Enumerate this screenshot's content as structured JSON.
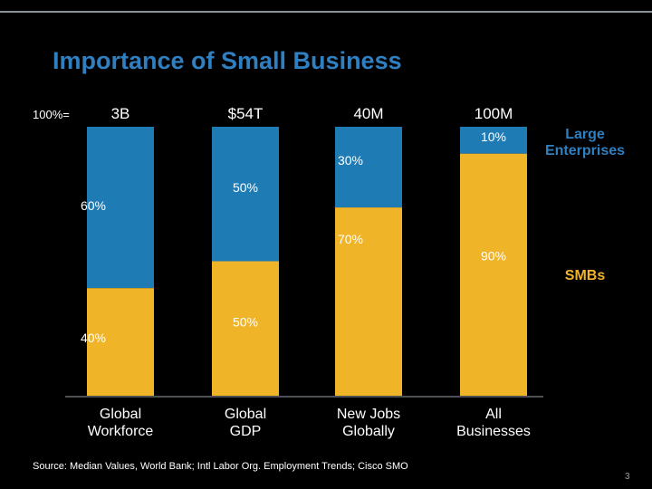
{
  "slide": {
    "title": "Importance of Small Business",
    "footnote": "Source: Median Values, World Bank; Intl Labor Org. Employment Trends; Cisco SMO",
    "page_number": "3"
  },
  "colors": {
    "background": "#000000",
    "title": "#2f7fc1",
    "large_enterprises": "#1f7bb4",
    "smbs": "#f0b429",
    "legend_large": "#2f7fc1",
    "legend_smbs": "#f0b429",
    "text": "#ffffff"
  },
  "chart_data": {
    "type": "bar",
    "stacked": true,
    "normalized": true,
    "total_prefix": "100%=",
    "categories": [
      "Global\nWorkforce",
      "Global\nGDP",
      "New Jobs\nGlobally",
      "All\nBusinesses"
    ],
    "totals": [
      "3B",
      "$54T",
      "40M",
      "100M"
    ],
    "series": [
      {
        "name": "SMBs",
        "key": "smbs",
        "values": [
          40,
          50,
          70,
          90
        ],
        "labels": [
          "40%",
          "50%",
          "70%",
          "90%"
        ]
      },
      {
        "name": "Large\nEnterprises",
        "key": "large_enterprises",
        "values": [
          60,
          50,
          30,
          10
        ],
        "labels": [
          "60%",
          "50%",
          "30%",
          "10%"
        ]
      }
    ],
    "ylim": [
      0,
      100
    ],
    "legend": "right",
    "grid": false
  }
}
